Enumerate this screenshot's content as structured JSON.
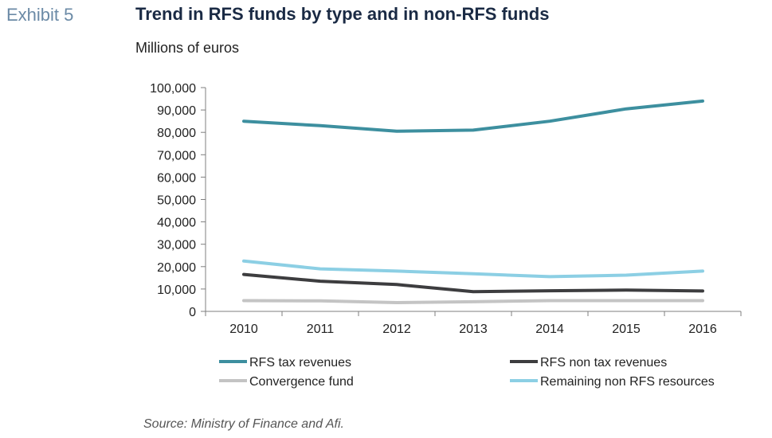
{
  "header": {
    "exhibit_label": "Exhibit 5",
    "title": "Trend in RFS funds by type and in non-RFS funds",
    "units": "Millions of euros"
  },
  "footer": {
    "source": "Source: Ministry of Finance and Afi."
  },
  "chart_data": {
    "type": "line",
    "title": "Trend in RFS funds by type and in non-RFS funds",
    "ylabel": "Millions of euros",
    "xlabel": "",
    "x": [
      "2010",
      "2011",
      "2012",
      "2013",
      "2014",
      "2015",
      "2016"
    ],
    "ylim": [
      0,
      100000
    ],
    "yticks": [
      0,
      10000,
      20000,
      30000,
      40000,
      50000,
      60000,
      70000,
      80000,
      90000,
      100000
    ],
    "ytick_labels": [
      "0",
      "10,000",
      "20,000",
      "30,000",
      "40,000",
      "50,000",
      "60,000",
      "70,000",
      "80,000",
      "90,000",
      "100,000"
    ],
    "grid": false,
    "legend_position": "bottom",
    "series": [
      {
        "name": "RFS tax revenues",
        "color": "#3d8f9f",
        "values": [
          85000,
          83000,
          80500,
          81000,
          85000,
          90500,
          94000
        ]
      },
      {
        "name": "RFS non tax revenues",
        "color": "#3d3d3f",
        "values": [
          16500,
          13500,
          12000,
          8800,
          9200,
          9500,
          9100
        ]
      },
      {
        "name": "Convergence fund",
        "color": "#c4c4c4",
        "values": [
          4800,
          4700,
          3900,
          4300,
          4800,
          4800,
          4800
        ]
      },
      {
        "name": "Remaining non RFS resources",
        "color": "#8ccfe4",
        "values": [
          22500,
          19000,
          18000,
          16800,
          15500,
          16200,
          18000
        ]
      }
    ]
  }
}
